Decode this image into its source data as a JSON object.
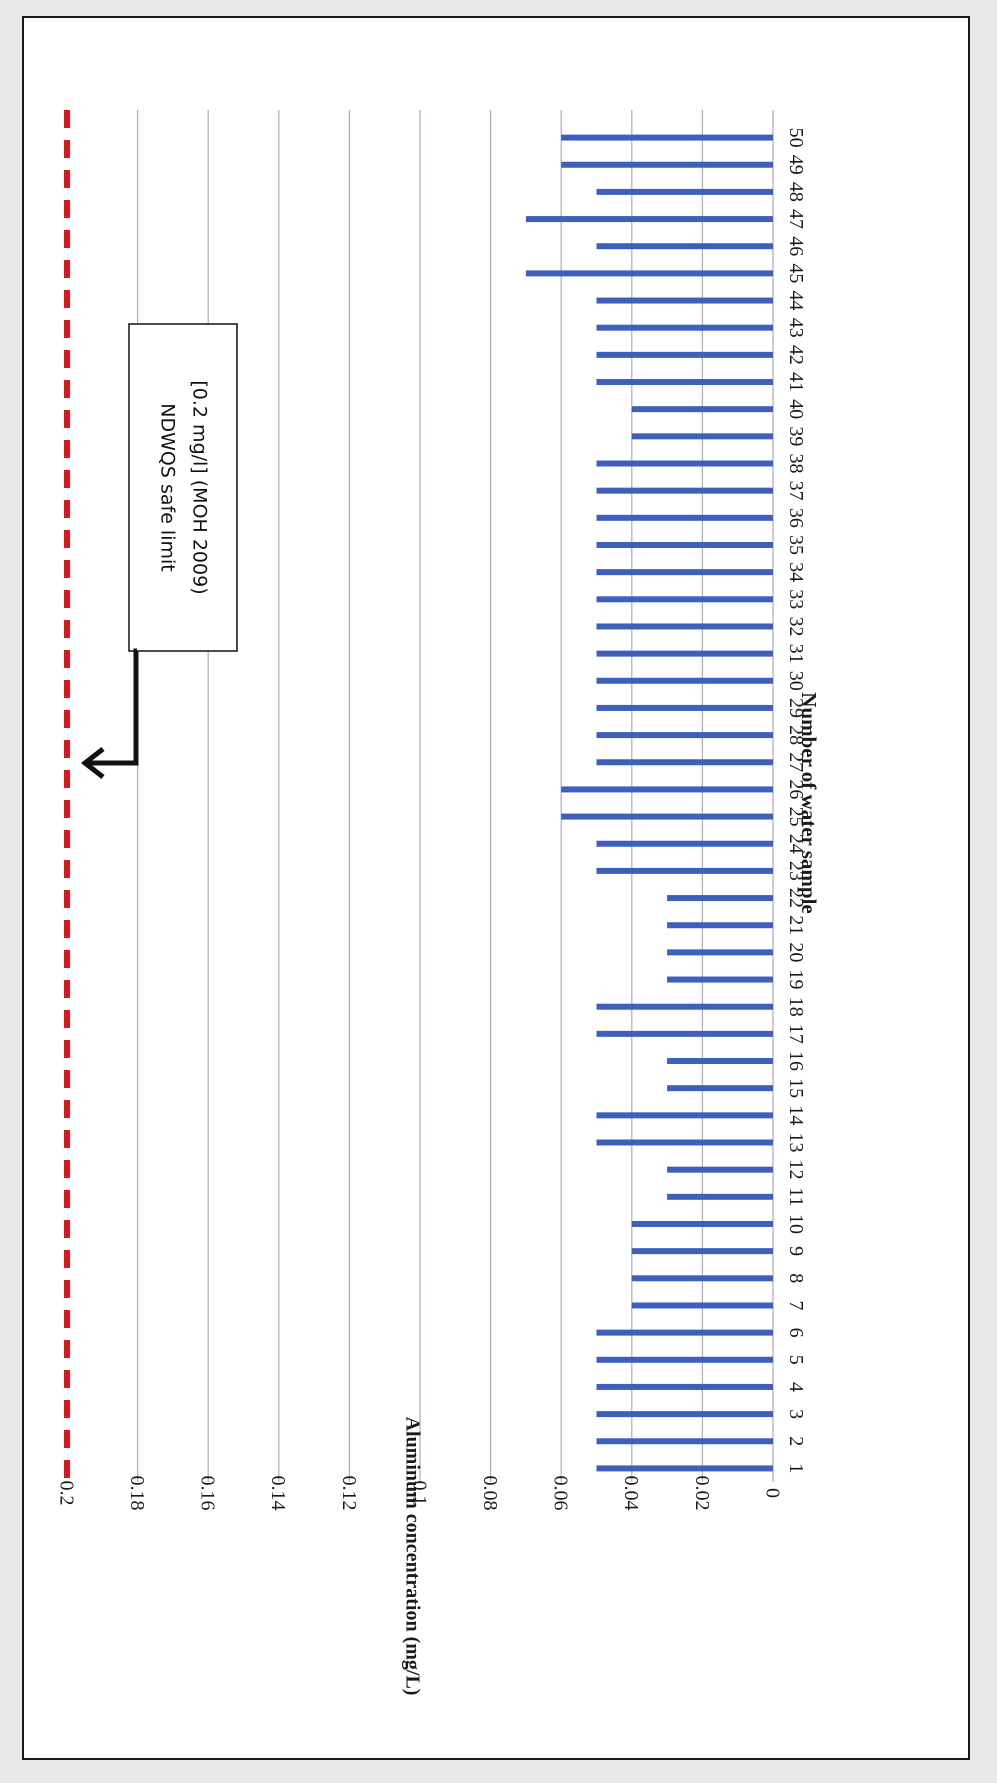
{
  "chart_data": {
    "type": "bar",
    "orientation": "rotated-90-clockwise",
    "xlabel": "Number of water sample",
    "ylabel": "Aluminum concentration (mg/L)",
    "ylim": [
      0,
      0.2
    ],
    "y_ticks": [
      "0",
      "0.02",
      "0.04",
      "0.06",
      "0.08",
      "0.1",
      "0.12",
      "0.14",
      "0.16",
      "0.18",
      "0.2"
    ],
    "grid": true,
    "categories": [
      "1",
      "2",
      "3",
      "4",
      "5",
      "6",
      "7",
      "8",
      "9",
      "10",
      "11",
      "12",
      "13",
      "14",
      "15",
      "16",
      "17",
      "18",
      "19",
      "20",
      "21",
      "22",
      "23",
      "24",
      "25",
      "26",
      "27",
      "28",
      "29",
      "30",
      "31",
      "32",
      "33",
      "34",
      "35",
      "36",
      "37",
      "38",
      "39",
      "40",
      "41",
      "42",
      "43",
      "44",
      "45",
      "46",
      "47",
      "48",
      "49",
      "50"
    ],
    "values": [
      0.05,
      0.05,
      0.05,
      0.05,
      0.05,
      0.05,
      0.04,
      0.04,
      0.04,
      0.04,
      0.03,
      0.03,
      0.05,
      0.05,
      0.03,
      0.03,
      0.05,
      0.05,
      0.03,
      0.03,
      0.03,
      0.03,
      0.05,
      0.05,
      0.06,
      0.06,
      0.05,
      0.05,
      0.05,
      0.05,
      0.05,
      0.05,
      0.05,
      0.05,
      0.05,
      0.05,
      0.05,
      0.05,
      0.04,
      0.04,
      0.05,
      0.05,
      0.05,
      0.05,
      0.07,
      0.05,
      0.07,
      0.05,
      0.06,
      0.06
    ],
    "series_color": "#3f5fbf",
    "reference_line": {
      "value": 0.2,
      "color": "#e0141e",
      "style": "dashed",
      "label_lines": [
        "NDWQS safe limit",
        "[0.2 mg/l] (MOH 2009)"
      ]
    }
  }
}
